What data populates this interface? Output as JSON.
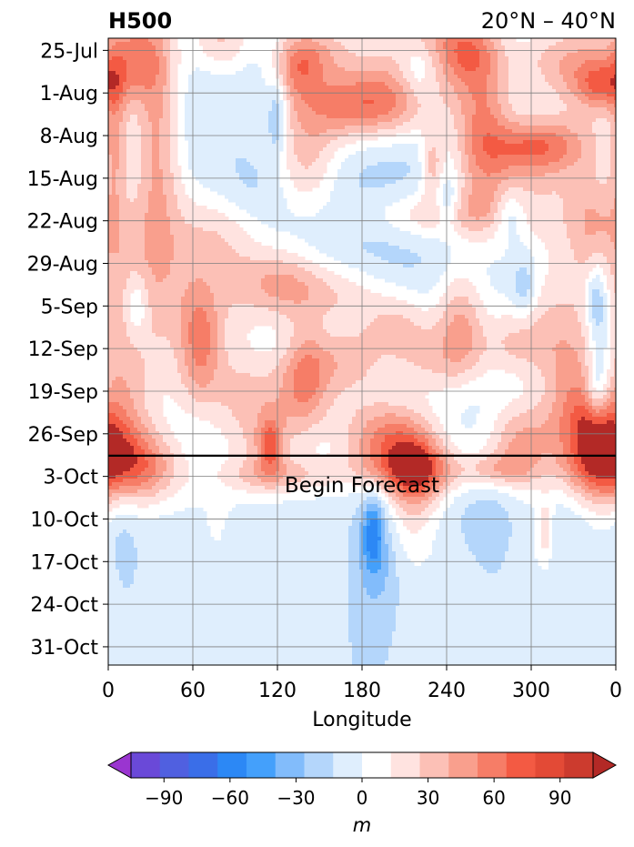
{
  "chart_data": {
    "type": "heatmap",
    "title": "H500",
    "subtitle": "20°N – 40°N",
    "xlabel": "Longitude",
    "ylabel": "",
    "x_ticks": [
      "0",
      "60",
      "120",
      "180",
      "240",
      "300",
      "0"
    ],
    "x_range": [
      0,
      360
    ],
    "y_ticks": [
      "25-Jul",
      "1-Aug",
      "8-Aug",
      "15-Aug",
      "22-Aug",
      "29-Aug",
      "5-Sep",
      "12-Sep",
      "19-Sep",
      "26-Sep",
      "3-Oct",
      "10-Oct",
      "17-Oct",
      "24-Oct",
      "31-Oct"
    ],
    "y_range_days_from_top": [
      0,
      103
    ],
    "forecast_line_label": "Begin Forecast",
    "forecast_start": "2-Oct",
    "grid": true,
    "colorbar": {
      "label": "m",
      "ticks": [
        "−90",
        "−60",
        "−30",
        "0",
        "30",
        "60",
        "90"
      ],
      "levels": [
        -105,
        -90,
        -75,
        -60,
        -45,
        -30,
        -15,
        0,
        15,
        30,
        45,
        60,
        75,
        90,
        105
      ],
      "colors": [
        "#9a35d0",
        "#6a49d8",
        "#5060e0",
        "#3a6ee8",
        "#2c88f5",
        "#44a0fb",
        "#82bcfb",
        "#b4d6fb",
        "#dfeefd",
        "#ffffff",
        "#ffe3e0",
        "#fcc0b6",
        "#f99f8d",
        "#f67d67",
        "#f35a43",
        "#e34a36",
        "#cc3b2e",
        "#b32926"
      ],
      "extend": "both"
    },
    "blobs": [
      {
        "lon": 20,
        "day": 2,
        "sx": 16,
        "sy": 6,
        "v": 55
      },
      {
        "lon": 80,
        "day": 0,
        "sx": 15,
        "sy": 4,
        "v": 45
      },
      {
        "lon": 150,
        "day": 2,
        "sx": 22,
        "sy": 4,
        "v": 45
      },
      {
        "lon": 225,
        "day": 0,
        "sx": 26,
        "sy": 5,
        "v": 55
      },
      {
        "lon": 255,
        "day": 2,
        "sx": 15,
        "sy": 4,
        "v": 45
      },
      {
        "lon": 330,
        "day": 4,
        "sx": 30,
        "sy": 5,
        "v": 60
      },
      {
        "lon": 265,
        "day": 10,
        "sx": 15,
        "sy": 8,
        "v": 40
      },
      {
        "lon": 350,
        "day": 8,
        "sx": 14,
        "sy": 3,
        "v": 55
      },
      {
        "lon": 135,
        "day": 5,
        "sx": 12,
        "sy": 4,
        "v": 50
      },
      {
        "lon": 220,
        "day": 5,
        "sx": 10,
        "sy": 4,
        "v": -35
      },
      {
        "lon": 195,
        "day": 9,
        "sx": 32,
        "sy": 4,
        "v": 45
      },
      {
        "lon": 175,
        "day": 12,
        "sx": 35,
        "sy": 4,
        "v": 55
      },
      {
        "lon": 120,
        "day": 13,
        "sx": 5,
        "sy": 4,
        "v": -40
      },
      {
        "lon": 35,
        "day": 17,
        "sx": 12,
        "sy": 14,
        "v": 55
      },
      {
        "lon": 140,
        "day": 20,
        "sx": 16,
        "sy": 6,
        "v": 45
      },
      {
        "lon": 300,
        "day": 18,
        "sx": 20,
        "sy": 3,
        "v": 40
      },
      {
        "lon": 320,
        "day": 17,
        "sx": 30,
        "sy": 4,
        "v": 45
      },
      {
        "lon": 265,
        "day": 20,
        "sx": 15,
        "sy": 8,
        "v": 40
      },
      {
        "lon": 230,
        "day": 21,
        "sx": 6,
        "sy": 4,
        "v": 45
      },
      {
        "lon": 5,
        "day": 16,
        "sx": 6,
        "sy": 10,
        "v": 40
      },
      {
        "lon": 240,
        "day": 27,
        "sx": 6,
        "sy": 3,
        "v": -35
      },
      {
        "lon": 285,
        "day": 29,
        "sx": 8,
        "sy": 3,
        "v": -35
      },
      {
        "lon": 195,
        "day": 34,
        "sx": 25,
        "sy": 14,
        "v": -10
      },
      {
        "lon": 300,
        "day": 26,
        "sx": 30,
        "sy": 6,
        "v": 35
      },
      {
        "lon": 75,
        "day": 32,
        "sx": 25,
        "sy": 6,
        "v": 35
      },
      {
        "lon": 230,
        "day": 29,
        "sx": 35,
        "sy": 3,
        "v": 40
      },
      {
        "lon": 345,
        "day": 30,
        "sx": 15,
        "sy": 6,
        "v": 35
      },
      {
        "lon": 10,
        "day": 34,
        "sx": 25,
        "sy": 8,
        "v": 30
      },
      {
        "lon": 100,
        "day": 25,
        "sx": 20,
        "sy": 4,
        "v": -12
      },
      {
        "lon": 120,
        "day": 40,
        "sx": 20,
        "sy": 4,
        "v": 40
      },
      {
        "lon": 160,
        "day": 42,
        "sx": 30,
        "sy": 4,
        "v": 40
      },
      {
        "lon": 20,
        "day": 44,
        "sx": 6,
        "sy": 4,
        "v": -35
      },
      {
        "lon": 60,
        "day": 45,
        "sx": 35,
        "sy": 8,
        "v": 40
      },
      {
        "lon": 250,
        "day": 46,
        "sx": 12,
        "sy": 6,
        "v": 50
      },
      {
        "lon": 320,
        "day": 45,
        "sx": 25,
        "sy": 8,
        "v": 35
      },
      {
        "lon": 345,
        "day": 43,
        "sx": 5,
        "sy": 4,
        "v": -35
      },
      {
        "lon": 295,
        "day": 41,
        "sx": 6,
        "sy": 4,
        "v": -30
      },
      {
        "lon": 205,
        "day": 47,
        "sx": 20,
        "sy": 4,
        "v": 40
      },
      {
        "lon": 350,
        "day": 50,
        "sx": 6,
        "sy": 10,
        "v": -30
      },
      {
        "lon": 330,
        "day": 57,
        "sx": 15,
        "sy": 6,
        "v": 45
      },
      {
        "lon": 140,
        "day": 55,
        "sx": 12,
        "sy": 6,
        "v": 55
      },
      {
        "lon": 170,
        "day": 53,
        "sx": 18,
        "sy": 4,
        "v": 45
      },
      {
        "lon": 65,
        "day": 50,
        "sx": 10,
        "sy": 6,
        "v": 45
      },
      {
        "lon": 100,
        "day": 58,
        "sx": 40,
        "sy": 5,
        "v": 35
      },
      {
        "lon": 10,
        "day": 56,
        "sx": 15,
        "sy": 10,
        "v": 40
      },
      {
        "lon": 230,
        "day": 53,
        "sx": 25,
        "sy": 4,
        "v": 40
      },
      {
        "lon": 290,
        "day": 50,
        "sx": 20,
        "sy": 4,
        "v": 35
      },
      {
        "lon": 330,
        "day": 65,
        "sx": 35,
        "sy": 5,
        "v": 40
      },
      {
        "lon": 10,
        "day": 68,
        "sx": 20,
        "sy": 6,
        "v": 45
      },
      {
        "lon": 110,
        "day": 67,
        "sx": 20,
        "sy": 6,
        "v": 40
      },
      {
        "lon": 200,
        "day": 67,
        "sx": 20,
        "sy": 4,
        "v": 50
      },
      {
        "lon": 290,
        "day": 67,
        "sx": 15,
        "sy": 5,
        "v": 40
      },
      {
        "lon": 195,
        "day": 63,
        "sx": 30,
        "sy": 4,
        "v": 35
      },
      {
        "lon": 345,
        "day": 64,
        "sx": 12,
        "sy": 4,
        "v": 40
      },
      {
        "lon": 20,
        "day": 62,
        "sx": 15,
        "sy": 4,
        "v": -10
      },
      {
        "lon": 345,
        "day": 58,
        "sx": 5,
        "sy": 4,
        "v": -30
      },
      {
        "lon": 115,
        "day": 67,
        "sx": 6,
        "sy": 3,
        "v": 55
      },
      {
        "lon": 220,
        "day": 71,
        "sx": 15,
        "sy": 4,
        "v": 60
      },
      {
        "lon": 345,
        "day": 71,
        "sx": 18,
        "sy": 4,
        "v": 60
      },
      {
        "lon": 30,
        "day": 71,
        "sx": 20,
        "sy": 4,
        "v": 45
      },
      {
        "lon": 210,
        "day": 71,
        "sx": 40,
        "sy": 3,
        "v": 35
      },
      {
        "lon": 120,
        "day": 72,
        "sx": 30,
        "sy": 2,
        "v": 30
      },
      {
        "lon": 275,
        "day": 71,
        "sx": 20,
        "sy": 2,
        "v": 30
      },
      {
        "lon": 215,
        "day": 77,
        "sx": 12,
        "sy": 6,
        "v": 30
      },
      {
        "lon": 190,
        "day": 86,
        "sx": 10,
        "sy": 6,
        "v": -25
      },
      {
        "lon": 188,
        "day": 81,
        "sx": 5,
        "sy": 4,
        "v": -45
      },
      {
        "lon": 270,
        "day": 78,
        "sx": 15,
        "sy": 5,
        "v": -10
      },
      {
        "lon": 300,
        "day": 84,
        "sx": 10,
        "sy": 8,
        "v": 12
      },
      {
        "lon": 310,
        "day": 81,
        "sx": 4,
        "sy": 4,
        "v": 30
      },
      {
        "lon": 80,
        "day": 81,
        "sx": 12,
        "sy": 8,
        "v": 10
      },
      {
        "lon": 10,
        "day": 78,
        "sx": 8,
        "sy": 5,
        "v": -12
      },
      {
        "lon": 60,
        "day": 82,
        "sx": 18,
        "sy": 8,
        "v": 8
      },
      {
        "lon": 150,
        "day": 83,
        "sx": 15,
        "sy": 8,
        "v": 8
      },
      {
        "lon": 230,
        "day": 88,
        "sx": 20,
        "sy": 8,
        "v": 8
      },
      {
        "lon": 350,
        "day": 78,
        "sx": 10,
        "sy": 8,
        "v": 10
      },
      {
        "lon": 240,
        "day": 97,
        "sx": 15,
        "sy": 6,
        "v": 6
      }
    ]
  }
}
